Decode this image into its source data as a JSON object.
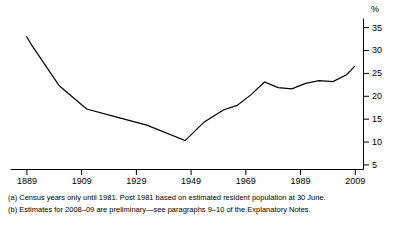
{
  "chart_data": {
    "type": "line",
    "ylabel": "%",
    "x": [
      1889,
      1891,
      1901,
      1911,
      1921,
      1933,
      1947,
      1954,
      1961,
      1966,
      1971,
      1976,
      1981,
      1986,
      1991,
      1996,
      2001,
      2006,
      2009
    ],
    "values": [
      33.0,
      31.0,
      22.2,
      17.1,
      15.5,
      13.6,
      10.2,
      14.3,
      16.9,
      17.9,
      20.2,
      23.0,
      21.8,
      21.5,
      22.7,
      23.3,
      23.1,
      24.6,
      26.5
    ],
    "color": "#000000",
    "xlim": [
      1883,
      2012
    ],
    "xticks": [
      1889,
      1909,
      1929,
      1949,
      1969,
      1989,
      2009
    ],
    "ylim": [
      4,
      37
    ],
    "yticks": [
      5,
      10,
      15,
      20,
      25,
      30,
      35
    ],
    "grid": false,
    "annotations": [
      "(a) Census years only until 1981. Post 1981 based on estimated resident population at 30 June.",
      "(b) Estimates for 2008–09 are preliminary—see paragraphs 9–10 of the Explanatory Notes."
    ]
  }
}
